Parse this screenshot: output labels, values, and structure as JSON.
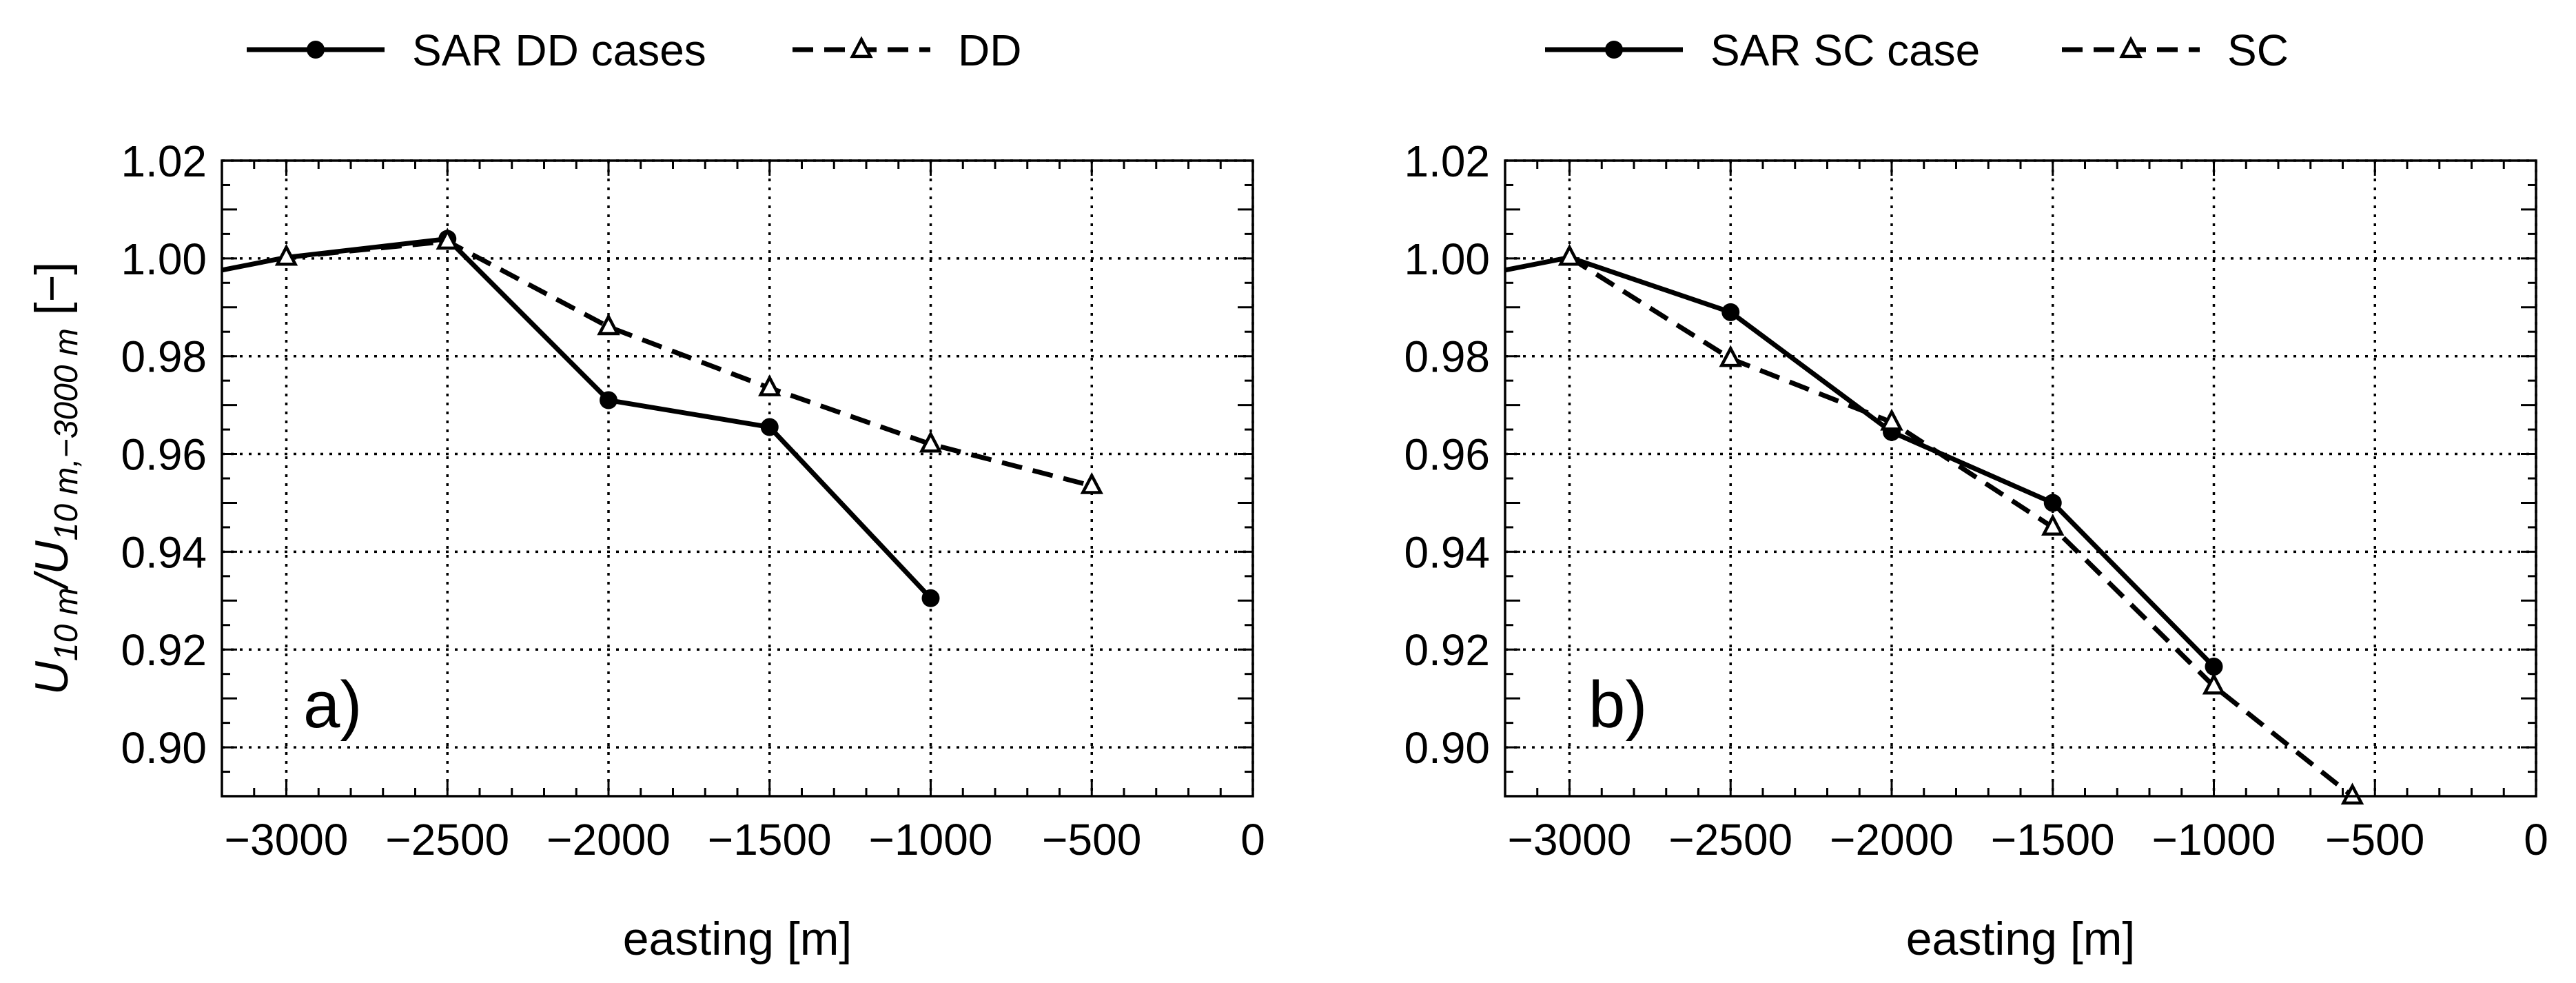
{
  "chart_data": [
    {
      "type": "line",
      "panel_label": "a)",
      "xlabel": "easting [m]",
      "ylabel": {
        "base": "U",
        "sub1": "10 m",
        "mid": "/U",
        "sub2": "10 m,−3000 m",
        "suffix": " [−]"
      },
      "xlim": [
        -3200,
        0
      ],
      "ylim": [
        0.89,
        1.02
      ],
      "xticks": [
        -3000,
        -2500,
        -2000,
        -1500,
        -1000,
        -500,
        0
      ],
      "xtick_labels": [
        "−3000",
        "−2500",
        "−2000",
        "−1500",
        "−1000",
        "−500",
        "0"
      ],
      "yticks": [
        0.9,
        0.92,
        0.94,
        0.96,
        0.98,
        1.0,
        1.02
      ],
      "ytick_labels": [
        "0.90",
        "0.92",
        "0.94",
        "0.96",
        "0.98",
        "1.00",
        "1.02"
      ],
      "grid": true,
      "legend": [
        {
          "name": "SAR DD cases",
          "style": "solid",
          "marker": "circle"
        },
        {
          "name": "DD",
          "style": "dashed",
          "marker": "triangle"
        }
      ],
      "series": [
        {
          "name": "SAR DD cases",
          "style": "solid",
          "marker": "circle",
          "x": [
            -3200,
            -3000,
            -2500,
            -2000,
            -1500,
            -1000
          ],
          "y": [
            0.9976,
            1.0002,
            1.004,
            0.971,
            0.9655,
            0.9305
          ],
          "marker_from": 2
        },
        {
          "name": "DD",
          "style": "dashed",
          "marker": "triangle",
          "x": [
            -3000,
            -2500,
            -2000,
            -1500,
            -1000,
            -500
          ],
          "y": [
            1.0002,
            1.0035,
            0.986,
            0.9735,
            0.962,
            0.9535
          ],
          "marker_from": 0
        }
      ]
    },
    {
      "type": "line",
      "panel_label": "b)",
      "xlabel": "easting [m]",
      "xlim": [
        -3200,
        0
      ],
      "ylim": [
        0.89,
        1.02
      ],
      "xticks": [
        -3000,
        -2500,
        -2000,
        -1500,
        -1000,
        -500,
        0
      ],
      "xtick_labels": [
        "−3000",
        "−2500",
        "−2000",
        "−1500",
        "−1000",
        "−500",
        "0"
      ],
      "yticks": [
        0.9,
        0.92,
        0.94,
        0.96,
        0.98,
        1.0,
        1.02
      ],
      "ytick_labels": [
        "0.90",
        "0.92",
        "0.94",
        "0.96",
        "0.98",
        "1.00",
        "1.02"
      ],
      "grid": true,
      "legend": [
        {
          "name": "SAR SC case",
          "style": "solid",
          "marker": "circle"
        },
        {
          "name": "SC",
          "style": "dashed",
          "marker": "triangle"
        }
      ],
      "series": [
        {
          "name": "SAR SC case",
          "style": "solid",
          "marker": "circle",
          "x": [
            -3200,
            -3000,
            -2500,
            -2000,
            -1500,
            -1000
          ],
          "y": [
            0.9976,
            1.0002,
            0.989,
            0.9645,
            0.95,
            0.9165
          ],
          "marker_from": 2
        },
        {
          "name": "SC",
          "style": "dashed",
          "marker": "triangle",
          "x": [
            -3000,
            -2500,
            -2000,
            -1500,
            -1000,
            -570
          ],
          "y": [
            1.0002,
            0.9795,
            0.9665,
            0.945,
            0.9125,
            0.89
          ],
          "marker_from": 0
        }
      ]
    }
  ]
}
